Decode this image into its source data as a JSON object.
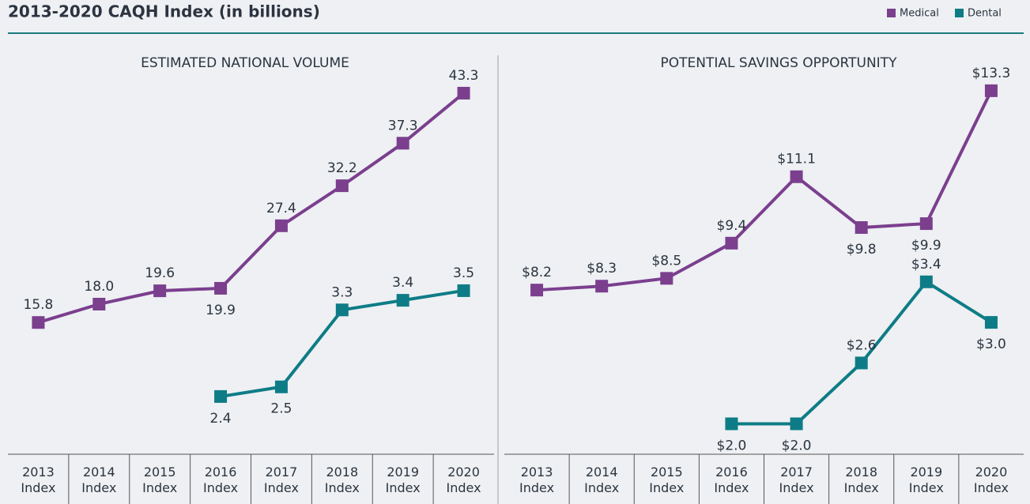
{
  "title": "2013-2020 CAQH Index (in billions)",
  "chart_data": [
    {
      "type": "line",
      "title": "ESTIMATED NATIONAL VOLUME",
      "categories": [
        "2013 Index",
        "2014 Index",
        "2015 Index",
        "2016 Index",
        "2017 Index",
        "2018 Index",
        "2019 Index",
        "2020 Index"
      ],
      "ylim": [
        0,
        45
      ],
      "y2lim": [
        1.8,
        5.7
      ],
      "series": [
        {
          "name": "Medical",
          "color": "#7b3f8e",
          "values": [
            15.8,
            18.0,
            19.6,
            19.9,
            27.4,
            32.2,
            37.3,
            43.3
          ],
          "value_labels": [
            "15.8",
            "18.0",
            "19.6",
            "19.9",
            "27.4",
            "32.2",
            "37.3",
            "43.3"
          ]
        },
        {
          "name": "Dental",
          "color": "#0e7c86",
          "axis": "y2",
          "values": [
            null,
            null,
            null,
            2.4,
            2.5,
            3.3,
            3.4,
            3.5
          ],
          "value_labels": [
            null,
            null,
            null,
            "2.4",
            "2.5",
            "3.3",
            "3.4",
            "3.5"
          ]
        }
      ]
    },
    {
      "type": "line",
      "title": "POTENTIAL SAVINGS OPPORTUNITY",
      "categories": [
        "2013 Index",
        "2014 Index",
        "2015 Index",
        "2016 Index",
        "2017 Index",
        "2018 Index",
        "2019 Index",
        "2020 Index"
      ],
      "ylim": [
        4,
        13.6
      ],
      "y2lim": [
        1.7,
        5.4
      ],
      "series": [
        {
          "name": "Medical",
          "color": "#7b3f8e",
          "values": [
            8.2,
            8.3,
            8.5,
            9.4,
            11.1,
            9.8,
            9.9,
            13.3
          ],
          "value_labels": [
            "$8.2",
            "$8.3",
            "$8.5",
            "$9.4",
            "$11.1",
            "$9.8",
            "$9.9",
            "$13.3"
          ]
        },
        {
          "name": "Dental",
          "color": "#0e7c86",
          "axis": "y2",
          "values": [
            null,
            null,
            null,
            2.0,
            2.0,
            2.6,
            3.4,
            3.0
          ],
          "value_labels": [
            null,
            null,
            null,
            "$2.0",
            "$2.0",
            "$2.6",
            "$3.4",
            "$3.0"
          ]
        }
      ]
    }
  ]
}
